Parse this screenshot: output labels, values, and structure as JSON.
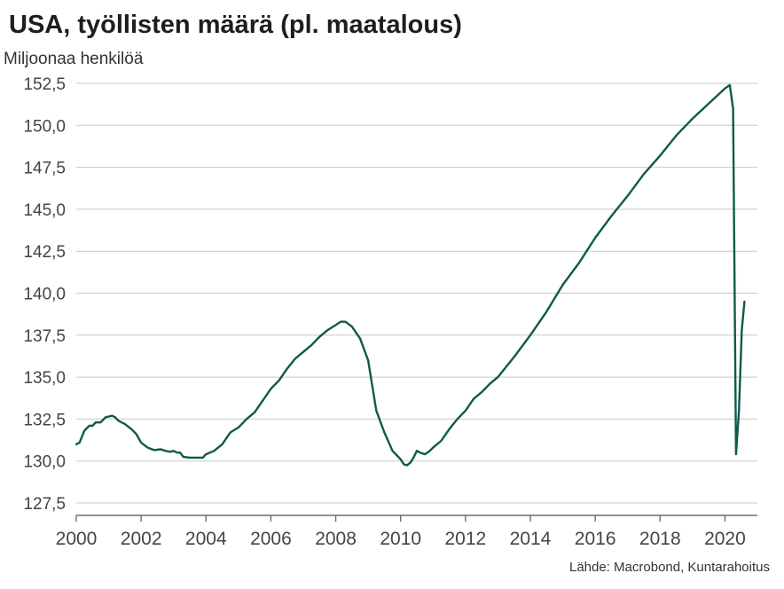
{
  "chart_data": {
    "type": "line",
    "title": "USA, työllisten määrä (pl. maatalous)",
    "ylabel": "Miljoonaa henkilöä",
    "source": "Lähde: Macrobond, Kuntarahoitus",
    "ylim": [
      127.5,
      152.5
    ],
    "xlim": [
      2000,
      2021
    ],
    "y_ticks": [
      "127,5",
      "130,0",
      "132,5",
      "135,0",
      "137,5",
      "140,0",
      "142,5",
      "145,0",
      "147,5",
      "150,0",
      "152,5"
    ],
    "x_ticks": [
      "2000",
      "2002",
      "2004",
      "2006",
      "2008",
      "2010",
      "2012",
      "2014",
      "2016",
      "2018",
      "2020"
    ],
    "grid": true,
    "colors": {
      "line": "#0d5a4b",
      "grid": "#c8c8c8",
      "axis": "#6e6e6e"
    },
    "series": [
      {
        "x": [
          2000.0,
          2000.1,
          2000.25,
          2000.4,
          2000.5,
          2000.6,
          2000.75,
          2000.9,
          2001.0,
          2001.1,
          2001.2,
          2001.3,
          2001.5,
          2001.7,
          2001.85,
          2002.0,
          2002.2,
          2002.4,
          2002.6,
          2002.75,
          2002.9,
          2003.0,
          2003.1,
          2003.2,
          2003.3,
          2003.5,
          2003.6,
          2003.75,
          2003.9,
          2004.0,
          2004.25,
          2004.5,
          2004.75,
          2005.0,
          2005.25,
          2005.5,
          2005.75,
          2006.0,
          2006.25,
          2006.5,
          2006.75,
          2007.0,
          2007.25,
          2007.5,
          2007.75,
          2008.0,
          2008.15,
          2008.3,
          2008.5,
          2008.75,
          2009.0,
          2009.25,
          2009.5,
          2009.75,
          2009.9,
          2010.0,
          2010.1,
          2010.2,
          2010.3,
          2010.4,
          2010.5,
          2010.6,
          2010.75,
          2010.9,
          2011.0,
          2011.25,
          2011.5,
          2011.75,
          2012.0,
          2012.25,
          2012.5,
          2012.75,
          2013.0,
          2013.5,
          2014.0,
          2014.5,
          2015.0,
          2015.5,
          2016.0,
          2016.5,
          2017.0,
          2017.5,
          2018.0,
          2018.5,
          2019.0,
          2019.5,
          2020.0,
          2020.15,
          2020.25,
          2020.34,
          2020.43,
          2020.52,
          2020.6
        ],
        "y": [
          131.0,
          131.1,
          131.8,
          132.1,
          132.1,
          132.3,
          132.3,
          132.6,
          132.65,
          132.7,
          132.6,
          132.4,
          132.2,
          131.9,
          131.6,
          131.1,
          130.8,
          130.65,
          130.7,
          130.6,
          130.55,
          130.6,
          130.5,
          130.5,
          130.25,
          130.2,
          130.2,
          130.2,
          130.2,
          130.4,
          130.6,
          131.0,
          131.7,
          132.0,
          132.5,
          132.9,
          133.6,
          134.3,
          134.8,
          135.5,
          136.1,
          136.5,
          136.9,
          137.4,
          137.8,
          138.1,
          138.3,
          138.3,
          138.0,
          137.3,
          136.0,
          133.0,
          131.7,
          130.6,
          130.3,
          130.1,
          129.8,
          129.75,
          129.9,
          130.2,
          130.6,
          130.5,
          130.4,
          130.6,
          130.8,
          131.2,
          131.9,
          132.5,
          133.0,
          133.7,
          134.1,
          134.6,
          135.0,
          136.2,
          137.5,
          138.9,
          140.5,
          141.8,
          143.3,
          144.6,
          145.8,
          147.1,
          148.2,
          149.4,
          150.4,
          151.3,
          152.2,
          152.4,
          151.0,
          130.4,
          133.0,
          137.8,
          139.5
        ]
      }
    ]
  }
}
